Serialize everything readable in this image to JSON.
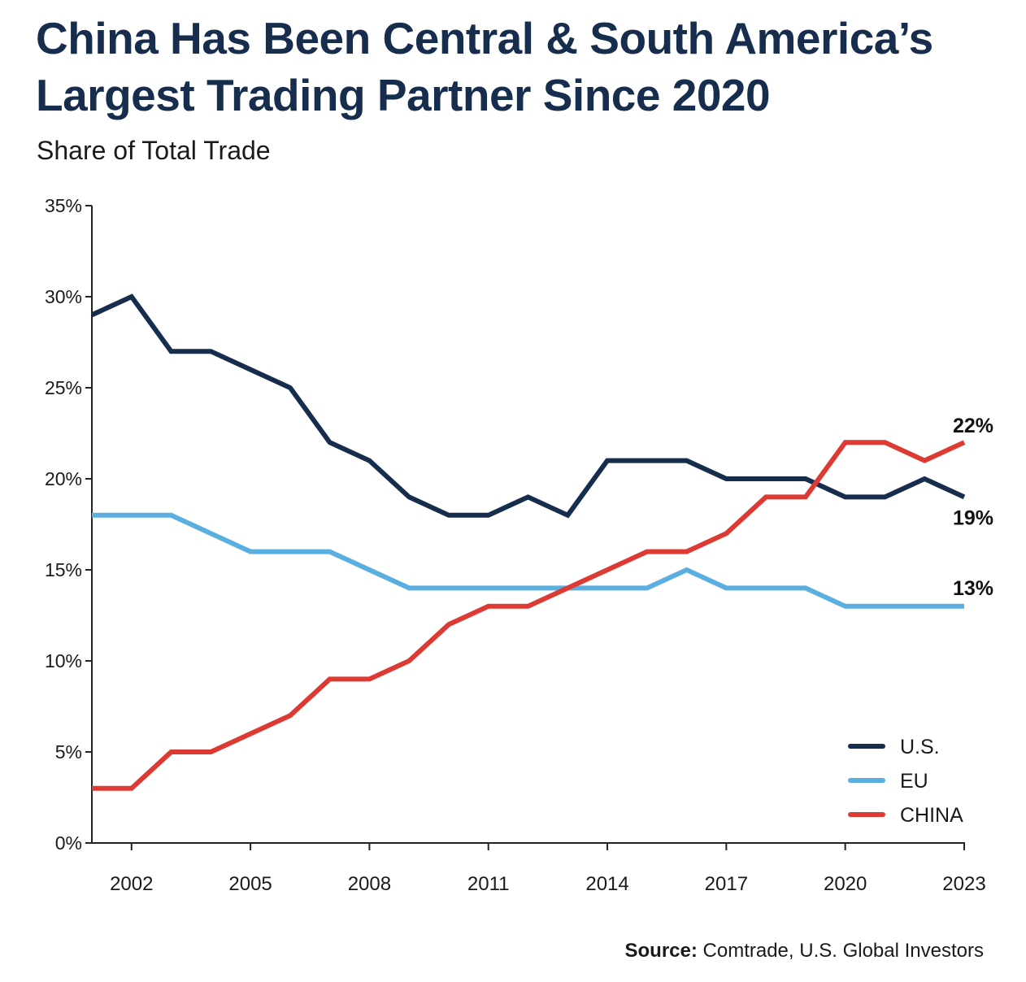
{
  "header": {
    "title_line1": "China Has Been Central & South America’s",
    "title_line2": "Largest Trading Partner Since 2020",
    "subtitle": "Share of Total Trade"
  },
  "source": {
    "label": "Source:",
    "text": "Comtrade, U.S. Global Investors"
  },
  "chart_data": {
    "type": "line",
    "x": [
      2001,
      2002,
      2003,
      2004,
      2005,
      2006,
      2007,
      2008,
      2009,
      2010,
      2011,
      2012,
      2013,
      2014,
      2015,
      2016,
      2017,
      2018,
      2019,
      2020,
      2021,
      2022,
      2023
    ],
    "xlim": [
      2001,
      2023
    ],
    "xticks": [
      2002,
      2005,
      2008,
      2011,
      2014,
      2017,
      2020,
      2023
    ],
    "ylim": [
      0,
      35
    ],
    "yticks": [
      0,
      5,
      10,
      15,
      20,
      25,
      30,
      35
    ],
    "ytick_labels": [
      "0%",
      "5%",
      "10%",
      "15%",
      "20%",
      "25%",
      "30%",
      "35%"
    ],
    "grid": false,
    "legend_position": "bottom-right",
    "series": [
      {
        "name": "U.S.",
        "color": "#172d4d",
        "values": [
          29,
          30,
          27,
          27,
          26,
          25,
          22,
          21,
          19,
          18,
          18,
          19,
          18,
          21,
          21,
          21,
          20,
          20,
          20,
          19,
          19,
          20,
          19
        ],
        "end_label": "19%"
      },
      {
        "name": "EU",
        "color": "#5aafe0",
        "values": [
          18,
          18,
          18,
          17,
          16,
          16,
          16,
          15,
          14,
          14,
          14,
          14,
          14,
          14,
          14,
          15,
          14,
          14,
          14,
          13,
          13,
          13,
          13
        ],
        "end_label": "13%"
      },
      {
        "name": "CHINA",
        "color": "#de3a34",
        "values": [
          3,
          3,
          5,
          5,
          6,
          7,
          9,
          9,
          10,
          12,
          13,
          13,
          14,
          15,
          16,
          16,
          17,
          19,
          19,
          22,
          22,
          21,
          22
        ],
        "end_label": "22%"
      }
    ]
  }
}
